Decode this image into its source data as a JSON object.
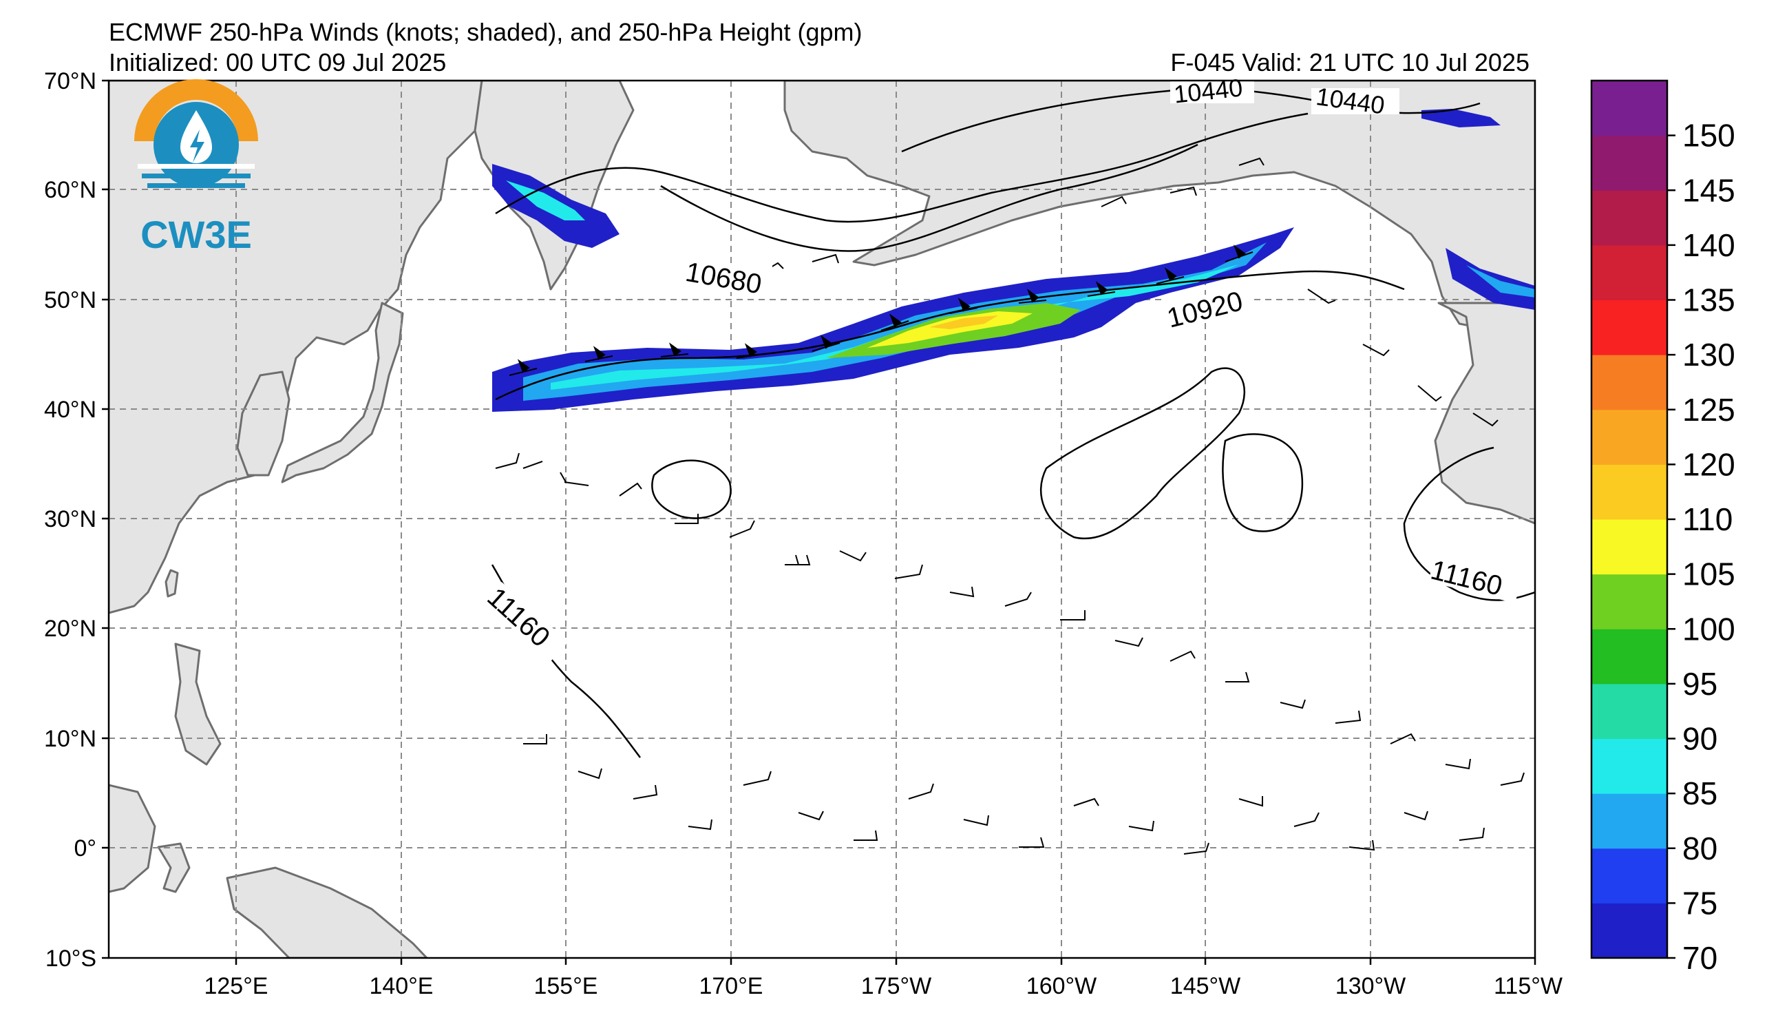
{
  "header": {
    "title": "ECMWF 250-hPa Winds (knots; shaded), and 250-hPa Height (gpm)",
    "initialized": "Initialized: 00 UTC 09 Jul 2025",
    "forecast": "F-045  Valid: 21 UTC 10 Jul 2025"
  },
  "logo": {
    "text": "CW3E",
    "colors": {
      "sun": "#f39c1f",
      "water": "#1c8fc0"
    }
  },
  "map": {
    "lat_labels": [
      "70°N",
      "60°N",
      "50°N",
      "40°N",
      "30°N",
      "20°N",
      "10°N",
      "0°",
      "10°S"
    ],
    "lon_labels": [
      "125°E",
      "140°E",
      "155°E",
      "170°E",
      "175°W",
      "160°W",
      "145°W",
      "130°W",
      "115°W"
    ],
    "lat_range": [
      -10,
      70
    ],
    "lon_range_east": [
      110,
      245
    ],
    "contour_labels": [
      "10440",
      "10440",
      "10680",
      "10920",
      "11160",
      "11160"
    ],
    "colors": {
      "land": "#e4e4e4",
      "coast": "#6e6e6e",
      "ocean": "#ffffff",
      "grid": "#8a8a8a"
    }
  },
  "colorbar": {
    "tick_labels": [
      "70",
      "75",
      "80",
      "85",
      "90",
      "95",
      "100",
      "105",
      "110",
      "120",
      "125",
      "130",
      "135",
      "140",
      "145",
      "150"
    ],
    "colors": [
      "#2020c8",
      "#1f3ff0",
      "#21a8f0",
      "#22eaea",
      "#24dba5",
      "#22be22",
      "#6fd021",
      "#f8f825",
      "#fbcb22",
      "#f9a722",
      "#f77d22",
      "#f82222",
      "#d22035",
      "#b21c4a",
      "#901a6e",
      "#7a1f8f"
    ]
  }
}
